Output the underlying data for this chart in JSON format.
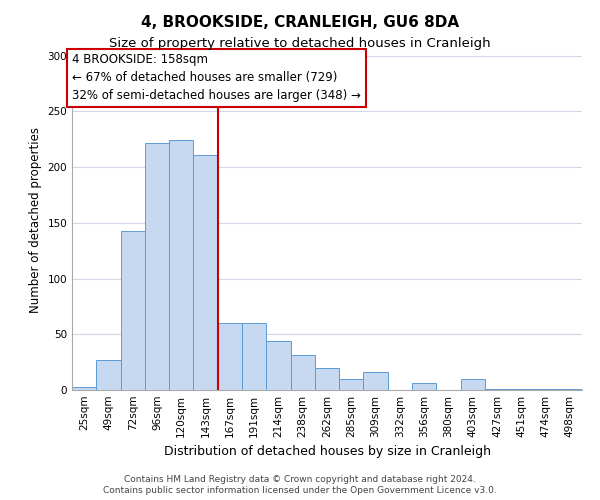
{
  "title": "4, BROOKSIDE, CRANLEIGH, GU6 8DA",
  "subtitle": "Size of property relative to detached houses in Cranleigh",
  "xlabel": "Distribution of detached houses by size in Cranleigh",
  "ylabel": "Number of detached properties",
  "bar_labels": [
    "25sqm",
    "49sqm",
    "72sqm",
    "96sqm",
    "120sqm",
    "143sqm",
    "167sqm",
    "191sqm",
    "214sqm",
    "238sqm",
    "262sqm",
    "285sqm",
    "309sqm",
    "332sqm",
    "356sqm",
    "380sqm",
    "403sqm",
    "427sqm",
    "451sqm",
    "474sqm",
    "498sqm"
  ],
  "bar_values": [
    3,
    27,
    143,
    222,
    224,
    211,
    60,
    60,
    44,
    31,
    20,
    10,
    16,
    0,
    6,
    0,
    10,
    1,
    1,
    1,
    1
  ],
  "bar_color": "#c6d9f0",
  "bar_edge_color": "#5b9bd5",
  "vline_x": 5.5,
  "vline_color": "#cc0000",
  "annotation_box_text": "4 BROOKSIDE: 158sqm\n← 67% of detached houses are smaller (729)\n32% of semi-detached houses are larger (348) →",
  "ylim": [
    0,
    305
  ],
  "footnote1": "Contains HM Land Registry data © Crown copyright and database right 2024.",
  "footnote2": "Contains public sector information licensed under the Open Government Licence v3.0.",
  "background_color": "#ffffff",
  "grid_color": "#d0d8e8",
  "title_fontsize": 11,
  "subtitle_fontsize": 9.5,
  "xlabel_fontsize": 9,
  "ylabel_fontsize": 8.5,
  "tick_fontsize": 7.5,
  "annotation_fontsize": 8.5,
  "footnote_fontsize": 6.5
}
